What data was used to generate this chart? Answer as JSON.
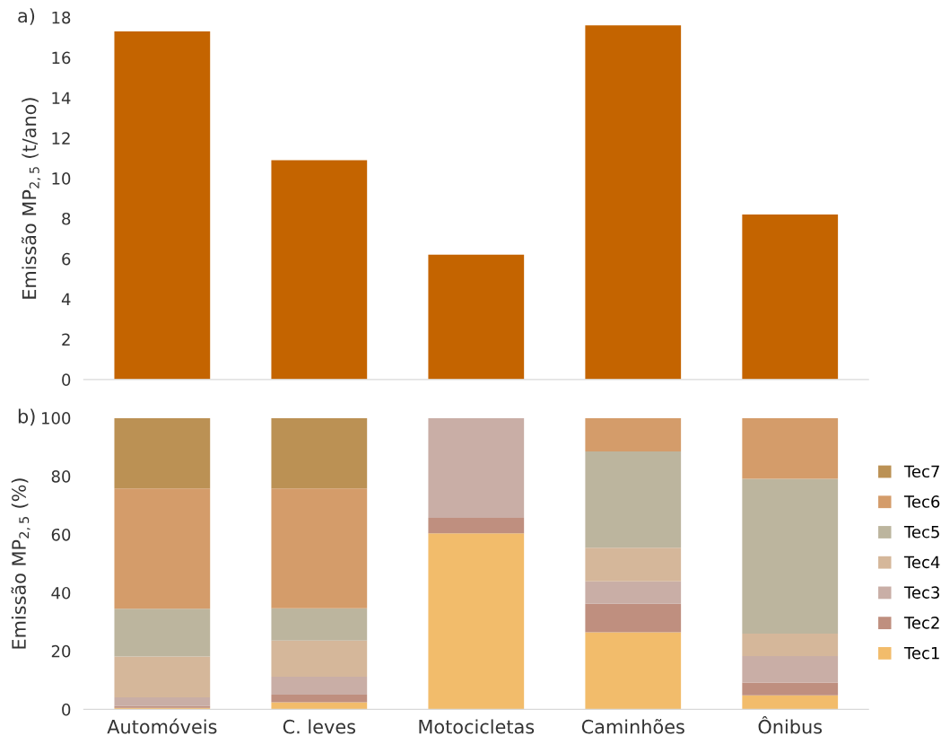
{
  "chart_data": [
    {
      "type": "bar",
      "ylabel": "Emissão MP$_{2,5}$ (t/ano)",
      "annotations": [
        "a)"
      ],
      "categories": [
        null,
        null,
        null,
        null,
        null
      ],
      "values": [
        17.3,
        10.9,
        6.2,
        17.6,
        8.2
      ],
      "color": "#c46400",
      "ylim": [
        0,
        18
      ],
      "yticks": [
        0,
        2,
        4,
        6,
        8,
        10,
        12,
        14,
        16,
        18
      ],
      "tick_labels": "y"
    },
    {
      "type": "bar",
      "stacked": true,
      "ylabel": "Emissão MP$_{2,5}$ (%)",
      "annotations": [
        "b)"
      ],
      "categories": [
        "Automóveis",
        "C. leves",
        "Motocicletas",
        "Caminhões",
        "Ônibus"
      ],
      "ylim": [
        0,
        100
      ],
      "yticks": [
        0,
        20,
        40,
        60,
        80,
        100
      ],
      "legend": "right",
      "series": [
        {
          "name": "Tec1",
          "color": "#f2bc6b",
          "values": [
            0.5,
            2.4,
            60.4,
            26.4,
            4.8
          ]
        },
        {
          "name": "Tec2",
          "color": "#bf8f7f",
          "values": [
            0.6,
            2.6,
            5.3,
            9.8,
            4.4
          ]
        },
        {
          "name": "Tec3",
          "color": "#c9aea6",
          "values": [
            3.0,
            6.2,
            34.3,
            7.7,
            9.1
          ]
        },
        {
          "name": "Tec4",
          "color": "#d5b79a",
          "values": [
            14.0,
            12.4,
            0,
            11.6,
            7.7
          ]
        },
        {
          "name": "Tec5",
          "color": "#bcb59e",
          "values": [
            16.4,
            11.1,
            0,
            33.0,
            53.1
          ]
        },
        {
          "name": "Tec6",
          "color": "#d49c6a",
          "values": [
            41.3,
            41.1,
            0,
            11.5,
            20.9
          ]
        },
        {
          "name": "Tec7",
          "color": "#bb9154",
          "values": [
            24.2,
            24.2,
            0,
            0,
            0
          ]
        }
      ]
    }
  ]
}
